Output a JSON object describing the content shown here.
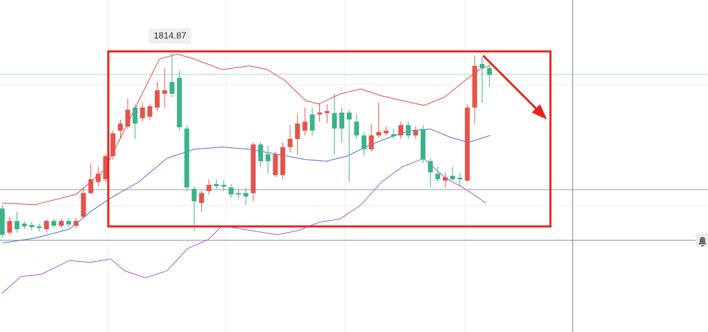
{
  "chart_data": {
    "type": "candlestick",
    "xlim": [
      -0.3,
      95.6
    ],
    "ylim": [
      1710,
      1835
    ],
    "up_color": "#e5534b",
    "down_color": "#3bb38a",
    "open": [
      1756.5,
      1747.4,
      1751.8,
      1750.8,
      1750.3,
      1749.8,
      1748.7,
      1751.8,
      1750.0,
      1751.8,
      1750.0,
      1753.4,
      1762.3,
      1766.5,
      1767.5,
      1776.2,
      1785.8,
      1787.4,
      1794.5,
      1790.5,
      1791.1,
      1794.5,
      1799.7,
      1804.1,
      1805.7,
      1786.6,
      1763.9,
      1758.6,
      1763.1,
      1765.7,
      1765.4,
      1764.4,
      1762.3,
      1762.3,
      1762.3,
      1780.6,
      1776.9,
      1769.1,
      1769.1,
      1779.6,
      1782.7,
      1785.8,
      1791.9,
      1791.9,
      1792.4,
      1792.4,
      1792.6,
      1792.6,
      1789.2,
      1784.0,
      1778.8,
      1784.0,
      1784.8,
      1784.5,
      1784.0,
      1787.9,
      1784.0,
      1786.4,
      1774.3,
      1769.6,
      1767.0,
      1768.8,
      1768.1,
      1767.0,
      1794.5,
      1810.9,
      1809.4
    ],
    "high": [
      1757.9,
      1753.4,
      1755.2,
      1751.8,
      1751.3,
      1750.8,
      1752.4,
      1752.6,
      1752.6,
      1752.9,
      1752.9,
      1764.4,
      1773.5,
      1772.2,
      1776.9,
      1785.8,
      1790.0,
      1797.9,
      1795.8,
      1796.3,
      1795.8,
      1804.1,
      1809.4,
      1814.87,
      1808.3,
      1787.9,
      1764.9,
      1763.1,
      1767.5,
      1767.5,
      1767.0,
      1765.7,
      1763.9,
      1764.4,
      1781.4,
      1781.4,
      1780.1,
      1778.0,
      1781.4,
      1787.9,
      1791.9,
      1794.5,
      1794.5,
      1796.3,
      1795.8,
      1799.7,
      1794.5,
      1793.7,
      1791.9,
      1785.3,
      1788.5,
      1796.3,
      1787.4,
      1786.6,
      1789.2,
      1789.2,
      1787.4,
      1787.9,
      1775.4,
      1772.2,
      1770.1,
      1772.2,
      1770.1,
      1795.8,
      1814.1,
      1813.6,
      1810.9
    ],
    "low": [
      1745.6,
      1746.6,
      1747.4,
      1748.7,
      1748.2,
      1747.9,
      1747.4,
      1749.2,
      1749.2,
      1749.5,
      1749.2,
      1752.9,
      1761.8,
      1764.9,
      1766.5,
      1774.9,
      1783.2,
      1786.6,
      1782.7,
      1789.2,
      1790.0,
      1793.2,
      1794.5,
      1798.4,
      1785.8,
      1763.1,
      1747.9,
      1755.2,
      1761.8,
      1763.9,
      1763.1,
      1760.5,
      1760.5,
      1757.9,
      1759.2,
      1772.2,
      1769.6,
      1768.3,
      1767.5,
      1777.5,
      1776.9,
      1784.0,
      1784.0,
      1789.2,
      1788.5,
      1776.9,
      1781.4,
      1766.5,
      1782.7,
      1776.2,
      1778.0,
      1783.2,
      1784.0,
      1782.7,
      1782.7,
      1782.7,
      1782.7,
      1773.5,
      1764.4,
      1766.5,
      1764.4,
      1767.0,
      1764.9,
      1766.5,
      1788.5,
      1796.3,
      1802.3
    ],
    "close": [
      1746.6,
      1751.8,
      1748.7,
      1749.8,
      1749.5,
      1749.2,
      1751.8,
      1750.0,
      1751.8,
      1750.5,
      1751.8,
      1762.3,
      1767.5,
      1769.6,
      1776.2,
      1784.8,
      1788.5,
      1793.7,
      1788.5,
      1794.5,
      1795.0,
      1801.0,
      1801.0,
      1799.7,
      1787.1,
      1764.4,
      1759.2,
      1762.3,
      1765.4,
      1764.9,
      1764.7,
      1761.8,
      1761.8,
      1761.0,
      1780.6,
      1774.3,
      1774.3,
      1776.9,
      1779.6,
      1782.7,
      1788.5,
      1789.2,
      1785.8,
      1792.6,
      1793.2,
      1786.6,
      1786.6,
      1790.0,
      1784.0,
      1778.8,
      1784.0,
      1785.3,
      1785.8,
      1783.7,
      1787.9,
      1784.0,
      1785.8,
      1774.9,
      1770.1,
      1767.5,
      1768.3,
      1767.5,
      1767.5,
      1794.5,
      1810.2,
      1809.4,
      1806.8
    ],
    "series": [
      {
        "color": "#e0483e",
        "x": [
          0,
          4.4,
          10.0,
          13.8,
          16.2,
          18.5,
          21.3,
          23.7,
          26.0,
          29.8,
          33.5,
          35.9,
          38.2,
          41.1,
          42.9,
          45.8,
          48.6,
          51.4,
          54.2,
          57.1,
          59.9,
          62.2,
          64.6,
          66.0
        ],
        "values": [
          1758.6,
          1757.9,
          1761.8,
          1770.9,
          1784.0,
          1797.1,
          1812.8,
          1814.6,
          1812.8,
          1808.8,
          1810.2,
          1808.8,
          1804.9,
          1797.1,
          1795.8,
          1799.7,
          1801.5,
          1798.9,
          1797.1,
          1795.3,
          1798.4,
          1803.6,
          1808.8,
          1810.2
        ]
      },
      {
        "color": "#3f6fd8",
        "x": [
          0,
          4.4,
          9.1,
          11.9,
          14.7,
          18.5,
          22.3,
          26.0,
          29.8,
          33.5,
          37.3,
          41.1,
          43.9,
          46.7,
          49.5,
          52.4,
          55.2,
          58.0,
          60.8,
          63.2,
          66.1
        ],
        "values": [
          1743.5,
          1745.3,
          1748.7,
          1755.2,
          1760.5,
          1766.5,
          1775.4,
          1778.8,
          1779.6,
          1778.8,
          1776.9,
          1774.9,
          1774.3,
          1776.2,
          1780.1,
          1783.2,
          1785.8,
          1786.4,
          1783.2,
          1781.4,
          1784.0
        ]
      },
      {
        "color": "#a455e6",
        "x": [
          0,
          2.5,
          5.3,
          9.1,
          11.9,
          14.7,
          16.6,
          19.4,
          22.3,
          25.1,
          27.9,
          29.8,
          32.6,
          37.3,
          40.1,
          42.9,
          45.8,
          48.6,
          51.4,
          54.2,
          57.1,
          59.9,
          62.7,
          65.5
        ],
        "values": [
          1724.6,
          1730.9,
          1731.7,
          1736.9,
          1736.2,
          1737.5,
          1733.0,
          1730.4,
          1733.0,
          1741.4,
          1744.8,
          1750.0,
          1748.7,
          1746.6,
          1748.2,
          1751.3,
          1752.6,
          1757.9,
          1766.5,
          1772.2,
          1775.4,
          1768.3,
          1763.9,
          1758.6
        ]
      }
    ]
  }
}
